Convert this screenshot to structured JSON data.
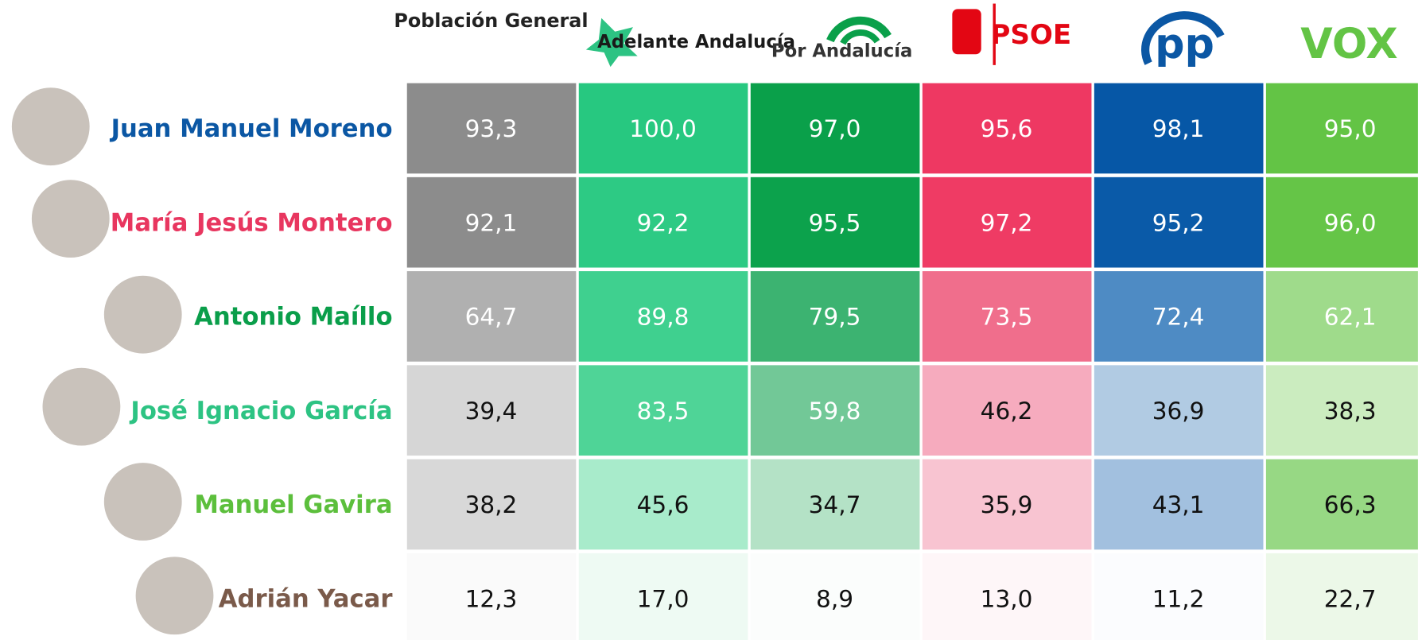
{
  "table": {
    "columns": [
      "Población General",
      "Adelante Andalucía",
      "Por Andalucía",
      "PSOE",
      "pp",
      "VOX"
    ],
    "rows": [
      {
        "name": "Juan Manuel Moreno",
        "values": [
          "93,3",
          "100,0",
          "97,0",
          "95,6",
          "98,1",
          "95,0"
        ]
      },
      {
        "name": "María Jesús Montero",
        "values": [
          "92,1",
          "92,2",
          "95,5",
          "97,2",
          "95,2",
          "96,0"
        ]
      },
      {
        "name": "Antonio Maíllo",
        "values": [
          "64,7",
          "89,8",
          "79,5",
          "73,5",
          "72,4",
          "62,1"
        ]
      },
      {
        "name": "José Ignacio García",
        "values": [
          "39,4",
          "83,5",
          "59,8",
          "46,2",
          "36,9",
          "38,3"
        ]
      },
      {
        "name": "Manuel Gavira",
        "values": [
          "38,2",
          "45,6",
          "34,7",
          "35,9",
          "43,1",
          "66,3"
        ]
      },
      {
        "name": "Adrián Yacar",
        "values": [
          "12,3",
          "17,0",
          "8,9",
          "13,0",
          "11,2",
          "22,7"
        ]
      }
    ]
  }
}
